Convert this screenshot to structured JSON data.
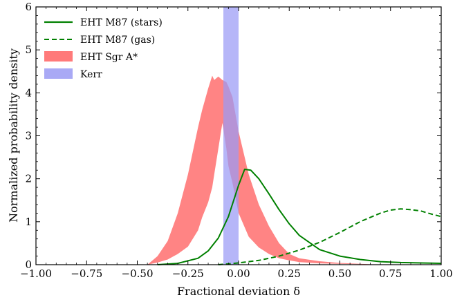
{
  "chart_data": {
    "type": "line",
    "xlabel": "Fractional deviation δ",
    "ylabel": "Normalized probability density",
    "xlim": [
      -1.0,
      1.0
    ],
    "ylim": [
      0,
      6
    ],
    "xticks": [
      "−1.00",
      "−0.75",
      "−0.50",
      "−0.25",
      "0.00",
      "0.25",
      "0.50",
      "0.75",
      "1.00"
    ],
    "yticks": [
      "0",
      "1",
      "2",
      "3",
      "4",
      "5",
      "6"
    ],
    "grid": false,
    "legend_position": "top-left",
    "colors": {
      "stars": "#008000",
      "gas": "#008000",
      "sgra": "#ff6f6f",
      "kerr": "#9a9af5"
    },
    "series": [
      {
        "name": "EHT M87 (stars)",
        "style": "solid",
        "x": [
          -0.4,
          -0.3,
          -0.2,
          -0.15,
          -0.1,
          -0.05,
          0.0,
          0.03,
          0.06,
          0.1,
          0.15,
          0.2,
          0.25,
          0.3,
          0.4,
          0.5,
          0.6,
          0.7,
          0.8,
          0.9,
          1.0
        ],
        "y": [
          0.0,
          0.03,
          0.15,
          0.32,
          0.62,
          1.12,
          1.85,
          2.22,
          2.2,
          2.0,
          1.65,
          1.28,
          0.95,
          0.68,
          0.35,
          0.2,
          0.12,
          0.07,
          0.05,
          0.04,
          0.03
        ]
      },
      {
        "name": "EHT M87 (gas)",
        "style": "dashed",
        "x": [
          -0.1,
          0.0,
          0.1,
          0.2,
          0.3,
          0.4,
          0.5,
          0.6,
          0.7,
          0.75,
          0.8,
          0.85,
          0.9,
          0.95,
          1.0
        ],
        "y": [
          0.0,
          0.04,
          0.1,
          0.2,
          0.34,
          0.52,
          0.75,
          1.0,
          1.2,
          1.27,
          1.3,
          1.28,
          1.25,
          1.18,
          1.12
        ]
      },
      {
        "name": "EHT Sgr A*",
        "style": "band",
        "x": [
          -0.45,
          -0.4,
          -0.35,
          -0.3,
          -0.25,
          -0.2,
          -0.18,
          -0.15,
          -0.13,
          -0.12,
          -0.1,
          -0.08,
          -0.06,
          -0.05,
          -0.03,
          0.0,
          0.05,
          0.1,
          0.15,
          0.2,
          0.25,
          0.3,
          0.4,
          0.5,
          0.6,
          0.7
        ],
        "y_low": [
          0.0,
          0.05,
          0.12,
          0.25,
          0.42,
          0.8,
          1.1,
          1.45,
          1.8,
          2.1,
          2.7,
          3.3,
          2.7,
          2.3,
          1.9,
          1.2,
          0.65,
          0.4,
          0.25,
          0.15,
          0.1,
          0.06,
          0.03,
          0.02,
          0.01,
          0.0
        ],
        "y_high": [
          0.0,
          0.2,
          0.55,
          1.2,
          2.1,
          3.2,
          3.6,
          4.1,
          4.4,
          4.3,
          4.38,
          4.3,
          4.25,
          4.15,
          3.9,
          3.1,
          2.1,
          1.4,
          0.9,
          0.5,
          0.25,
          0.15,
          0.08,
          0.04,
          0.02,
          0.0
        ]
      },
      {
        "name": "Kerr",
        "style": "vband",
        "xmin": -0.075,
        "xmax": 0.0
      }
    ]
  }
}
